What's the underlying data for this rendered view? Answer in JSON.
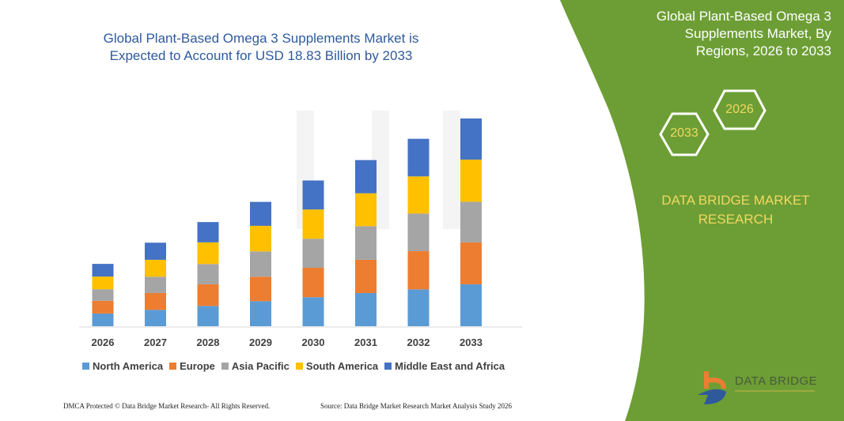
{
  "title": "Global Plant-Based Omega 3 Supplements Market is Expected to Account for USD 18.83 Billion by 2033",
  "side_panel": {
    "title": "Global Plant-Based Omega 3 Supplements Market, By Regions, 2026 to 2033",
    "hex_start": "2026",
    "hex_end": "2033",
    "brand": "DATA BRIDGE MARKET RESEARCH",
    "logo_text": "DATA BRIDGE",
    "background_color": "#6d9e35"
  },
  "footer": {
    "left": "DMCA Protected © Data Bridge Market Research-  All Rights Reserved.",
    "right": "Source: Data Bridge Market Research  Market Analysis Study 2026"
  },
  "chart_data": {
    "type": "bar",
    "stacked": true,
    "title": "Global Plant-Based Omega 3 Supplements Market is Expected to Account for USD 18.83 Billion by 2033",
    "categories": [
      "2026",
      "2027",
      "2028",
      "2029",
      "2030",
      "2031",
      "2032",
      "2033"
    ],
    "series": [
      {
        "name": "North America",
        "color": "#5b9bd5",
        "values": [
          1.15,
          1.48,
          1.84,
          2.27,
          2.63,
          3.01,
          3.34,
          3.8
        ]
      },
      {
        "name": "Europe",
        "color": "#ed7d31",
        "values": [
          1.15,
          1.53,
          1.96,
          2.22,
          2.67,
          3.01,
          3.46,
          3.8
        ]
      },
      {
        "name": "Asia Pacific",
        "color": "#a5a5a5",
        "values": [
          1.05,
          1.48,
          1.84,
          2.29,
          2.63,
          3.05,
          3.41,
          3.68
        ]
      },
      {
        "name": "South America",
        "color": "#ffc000",
        "values": [
          1.15,
          1.53,
          1.96,
          2.32,
          2.65,
          2.98,
          3.37,
          3.82
        ]
      },
      {
        "name": "Middle East and Africa",
        "color": "#4472c4",
        "values": [
          1.15,
          1.55,
          1.84,
          2.17,
          2.63,
          3.01,
          3.41,
          3.73
        ]
      }
    ],
    "ylim": [
      0,
      18.83
    ],
    "legend": "bottom",
    "grid": false
  }
}
